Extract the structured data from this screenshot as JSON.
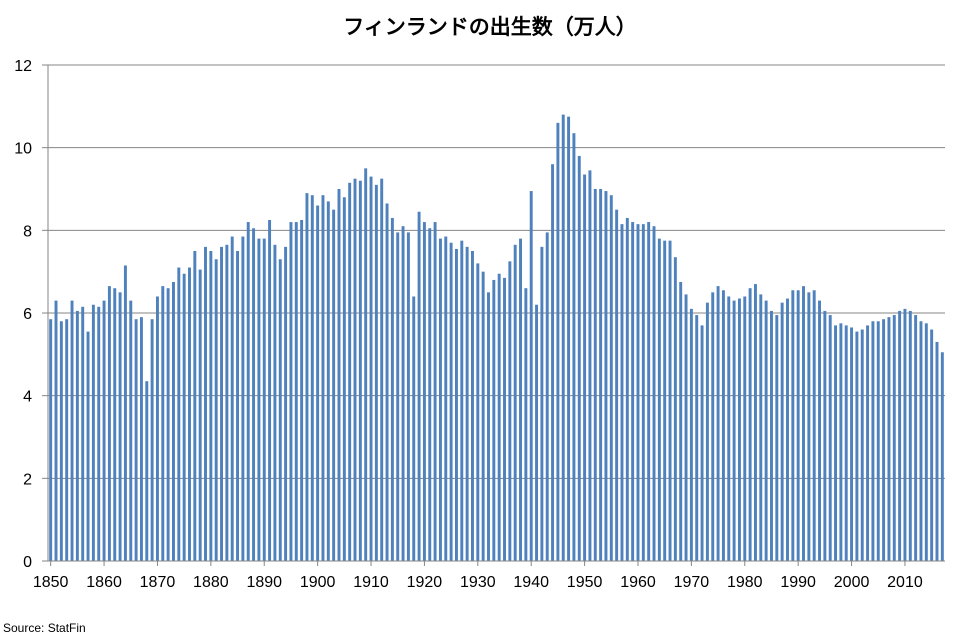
{
  "chart_data": {
    "type": "bar",
    "title": "フィンランドの出生数（万人）",
    "source": "Source: StatFin",
    "xlabel": "",
    "ylabel": "",
    "ylim": [
      0,
      12
    ],
    "yticks": [
      "0",
      "2",
      "4",
      "6",
      "8",
      "10",
      "12"
    ],
    "xticks": [
      "1850",
      "1860",
      "1870",
      "1880",
      "1890",
      "1900",
      "1910",
      "1920",
      "1930",
      "1940",
      "1950",
      "1960",
      "1970",
      "1980",
      "1990",
      "2000",
      "2010"
    ],
    "grid": true,
    "bar_color": "#4f81bd",
    "x_start": 1850,
    "values": [
      5.85,
      6.3,
      5.8,
      5.85,
      6.3,
      6.05,
      6.15,
      5.55,
      6.2,
      6.15,
      6.3,
      6.65,
      6.6,
      6.5,
      7.15,
      6.3,
      5.85,
      5.9,
      4.35,
      5.85,
      6.4,
      6.65,
      6.6,
      6.75,
      7.1,
      6.95,
      7.1,
      7.5,
      7.05,
      7.6,
      7.5,
      7.3,
      7.6,
      7.65,
      7.85,
      7.5,
      7.85,
      8.2,
      8.05,
      7.8,
      7.8,
      8.25,
      7.65,
      7.3,
      7.6,
      8.2,
      8.2,
      8.25,
      8.9,
      8.85,
      8.6,
      8.85,
      8.7,
      8.5,
      9.0,
      8.8,
      9.15,
      9.25,
      9.2,
      9.5,
      9.3,
      9.1,
      9.25,
      8.65,
      8.3,
      7.95,
      8.1,
      7.95,
      6.4,
      8.45,
      8.2,
      8.05,
      8.2,
      7.8,
      7.85,
      7.7,
      7.55,
      7.75,
      7.6,
      7.5,
      7.2,
      7.0,
      6.5,
      6.8,
      6.95,
      6.85,
      7.25,
      7.65,
      7.8,
      6.6,
      8.95,
      6.2,
      7.6,
      7.95,
      9.6,
      10.6,
      10.8,
      10.75,
      10.35,
      9.8,
      9.35,
      9.45,
      9.0,
      9.0,
      8.95,
      8.85,
      8.5,
      8.15,
      8.3,
      8.2,
      8.15,
      8.15,
      8.2,
      8.1,
      7.8,
      7.75,
      7.75,
      7.35,
      6.75,
      6.45,
      6.1,
      5.95,
      5.7,
      6.25,
      6.5,
      6.65,
      6.55,
      6.4,
      6.3,
      6.35,
      6.4,
      6.6,
      6.7,
      6.45,
      6.3,
      6.05,
      5.95,
      6.25,
      6.35,
      6.55,
      6.55,
      6.65,
      6.5,
      6.55,
      6.3,
      6.05,
      5.95,
      5.7,
      5.75,
      5.7,
      5.65,
      5.55,
      5.6,
      5.7,
      5.8,
      5.8,
      5.85,
      5.9,
      5.95,
      6.05,
      6.1,
      6.05,
      5.95,
      5.8,
      5.75,
      5.6,
      5.3,
      5.05
    ]
  }
}
